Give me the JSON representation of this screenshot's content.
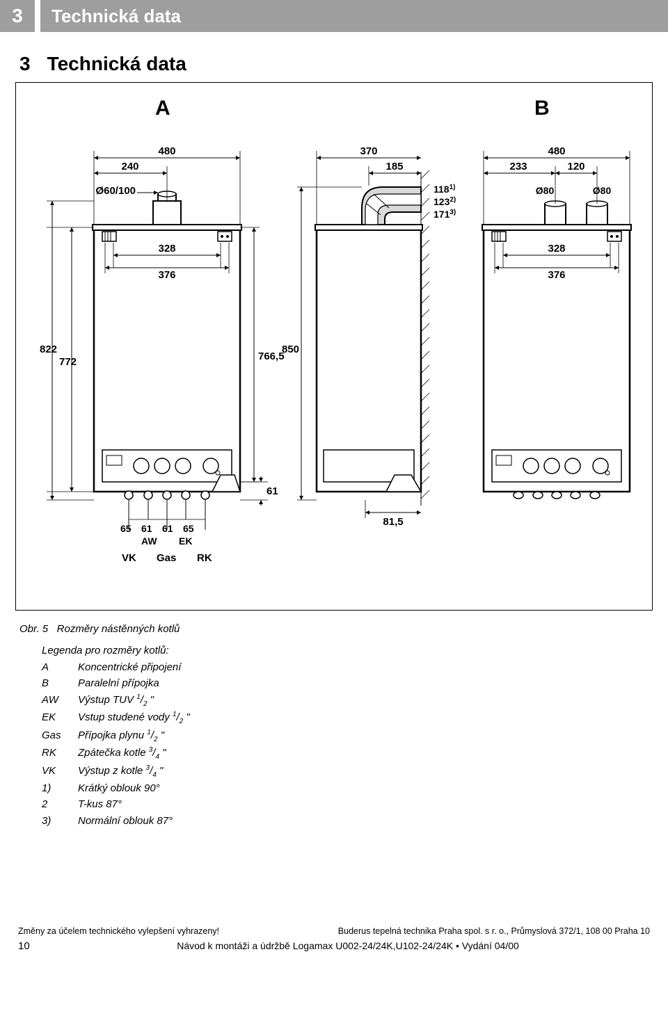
{
  "header": {
    "num": "3",
    "title": "Technická data"
  },
  "section": {
    "num": "3",
    "title": "Technická data"
  },
  "figure": {
    "labelA": "A",
    "labelB": "B",
    "caption_prefix": "Obr. 5",
    "caption_text": "Rozměry nástěnných kotlů",
    "A": {
      "top_total": "480",
      "top_half": "240",
      "flue_dia": "Ø60/100",
      "inner_w1": "328",
      "inner_w2": "376",
      "h_outer": "822",
      "h_inner": "772",
      "h_right": "766,5",
      "bottom_offset": "61",
      "conn_gaps": [
        "65",
        "61",
        "61",
        "65"
      ],
      "conn_labels": [
        "AW",
        "EK"
      ],
      "bottom_labels": [
        "VK",
        "Gas",
        "RK"
      ]
    },
    "M": {
      "top_total": "370",
      "top_half": "185",
      "elbow_h1": "118",
      "elbow_h1_sup": "1)",
      "elbow_h2": "123",
      "elbow_h2_sup": "2)",
      "elbow_h3": "171",
      "elbow_h3_sup": "3)",
      "height": "850",
      "bottom_offset": "81,5"
    },
    "B": {
      "top_total": "480",
      "top_left": "233",
      "top_right": "120",
      "flue_dia1": "Ø80",
      "flue_dia2": "Ø80",
      "inner_w1": "328",
      "inner_w2": "376"
    }
  },
  "legend": {
    "title": "Legenda pro rozměry kotlů:",
    "rows": [
      {
        "k": "A",
        "v": "Koncentrické připojení"
      },
      {
        "k": "B",
        "v": "Paralelní přípojka"
      },
      {
        "k": "AW",
        "v_html": "Výstup TUV <sup>1</sup>/<sub>2</sub> \""
      },
      {
        "k": "EK",
        "v_html": "Vstup studené vody <sup>1</sup>/<sub>2</sub> \""
      },
      {
        "k": "Gas",
        "v_html": "Přípojka plynu <sup>1</sup>/<sub>2</sub> \""
      },
      {
        "k": "RK",
        "v_html": "Zpátečka kotle <sup>3</sup>/<sub>4</sub> \""
      },
      {
        "k": "VK",
        "v_html": "Výstup z kotle  <sup>3</sup>/<sub>4</sub> \""
      },
      {
        "k": "1)",
        "v": "Krátký oblouk 90°"
      },
      {
        "k": "2",
        "v": "T-kus 87°"
      },
      {
        "k": "3)",
        "v": "Normální oblouk 87°"
      }
    ]
  },
  "footer": {
    "left": "Změny za účelem technického vylepšení vyhrazeny!",
    "right": "Buderus tepelná technika Praha spol. s r. o., Průmyslová 372/1, 108 00 Praha 10",
    "page": "10",
    "doc": "Návod k montáži a údržbě Logamax U002-24/24K,U102-24/24K • Vydání 04/00"
  },
  "style": {
    "stroke": "#000000",
    "fill_boiler": "#ffffff",
    "fill_shade": "#d9d9d9",
    "font_dim": 14,
    "font_dim_bold": 15
  }
}
